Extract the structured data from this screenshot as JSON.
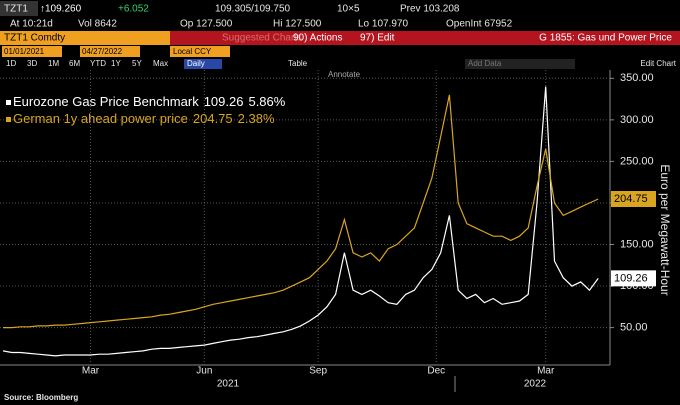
{
  "ui": {
    "ticker": "TZT1",
    "last": "↑109.260",
    "change": "+6.052",
    "bid_ask": "109.305/109.750",
    "size": "10×5",
    "prev": "Prev 103.208",
    "time": "At 10:21d",
    "vol": "Vol 8642",
    "open": "Op 127.500",
    "high": "Hi 127.500",
    "low": "Lo 107.970",
    "open_int": "OpenInt 67952",
    "security": "TZT1 Comdty",
    "suggested": "Suggested Charts",
    "actions": "90) Actions",
    "edit": "97) Edit",
    "chart_name": "G 1855: Gas und Power Price",
    "start_date": "01/01/2021",
    "end_date": "04/27/2022",
    "currency": "Local CCY",
    "periods": [
      "1D",
      "3D",
      "1M",
      "6M",
      "YTD",
      "1Y",
      "5Y",
      "Max"
    ],
    "frequency": "Daily",
    "table": "Table",
    "add_data": "Add Data",
    "edit_chart": "Edit Chart",
    "annotate": "Annotate",
    "source": "Source: Bloomberg"
  },
  "chart_data": {
    "type": "line",
    "y_label": "Euro per Megawatt-Hour",
    "year_labels": [
      "2021",
      "2022"
    ],
    "x": [
      0,
      1,
      2,
      3,
      4,
      5,
      6,
      7,
      8,
      9,
      10,
      11,
      12,
      13,
      14,
      15,
      16,
      17,
      18,
      19,
      20,
      21,
      22,
      23,
      24,
      25,
      26,
      27,
      28,
      29,
      30,
      31,
      32,
      33,
      34,
      35,
      36,
      37,
      38,
      39,
      40,
      41,
      42,
      43,
      44,
      45,
      46,
      47,
      48,
      49,
      50,
      51,
      52,
      53,
      54,
      55,
      56,
      57,
      58,
      59,
      60,
      61,
      62,
      63,
      64,
      65,
      66,
      67,
      68
    ],
    "xlim": [
      0,
      69
    ],
    "xticks": [
      {
        "value": 10,
        "label": "Mar"
      },
      {
        "value": 23,
        "label": "Jun"
      },
      {
        "value": 36,
        "label": "Sep"
      },
      {
        "value": 49.5,
        "label": "Dec"
      },
      {
        "value": 62,
        "label": "Mar"
      }
    ],
    "ylim": [
      5,
      360
    ],
    "yticks": [
      {
        "value": 50,
        "label": "50.00"
      },
      {
        "value": 100,
        "label": "100.00"
      },
      {
        "value": 150,
        "label": "150.00"
      },
      {
        "value": 200,
        "label": "200.00"
      },
      {
        "value": 250,
        "label": "250.00"
      },
      {
        "value": 300,
        "label": "300.00"
      },
      {
        "value": 350,
        "label": "350.00"
      }
    ],
    "grid": true,
    "series": [
      {
        "name": "Eurozone Gas Price Benchmark",
        "color": "#ffffff",
        "change": "5.86%",
        "values": [
          22,
          20,
          20,
          19,
          18,
          17,
          16,
          17,
          17,
          17,
          17,
          18,
          18,
          19,
          20,
          21,
          22,
          24,
          25,
          25,
          26,
          27,
          28,
          29,
          31,
          33,
          35,
          36,
          38,
          39,
          41,
          43,
          45,
          48,
          52,
          58,
          65,
          75,
          90,
          140,
          95,
          90,
          95,
          88,
          80,
          78,
          90,
          95,
          110,
          120,
          140,
          185,
          95,
          85,
          90,
          80,
          85,
          78,
          80,
          82,
          90,
          200,
          340,
          130,
          110,
          100,
          105,
          95,
          109.26
        ]
      },
      {
        "name": "German 1y ahead power price",
        "color": "#d9a520",
        "change": "2.38%",
        "values": [
          50,
          50,
          51,
          51,
          52,
          52,
          53,
          53,
          54,
          55,
          56,
          57,
          58,
          59,
          60,
          61,
          62,
          63,
          65,
          66,
          68,
          70,
          72,
          75,
          78,
          80,
          82,
          84,
          86,
          88,
          90,
          92,
          95,
          100,
          105,
          110,
          120,
          130,
          145,
          180,
          140,
          135,
          140,
          130,
          145,
          150,
          160,
          170,
          200,
          230,
          280,
          330,
          200,
          175,
          170,
          165,
          160,
          160,
          155,
          160,
          170,
          220,
          265,
          200,
          185,
          190,
          195,
          200,
          204.75
        ]
      }
    ]
  }
}
